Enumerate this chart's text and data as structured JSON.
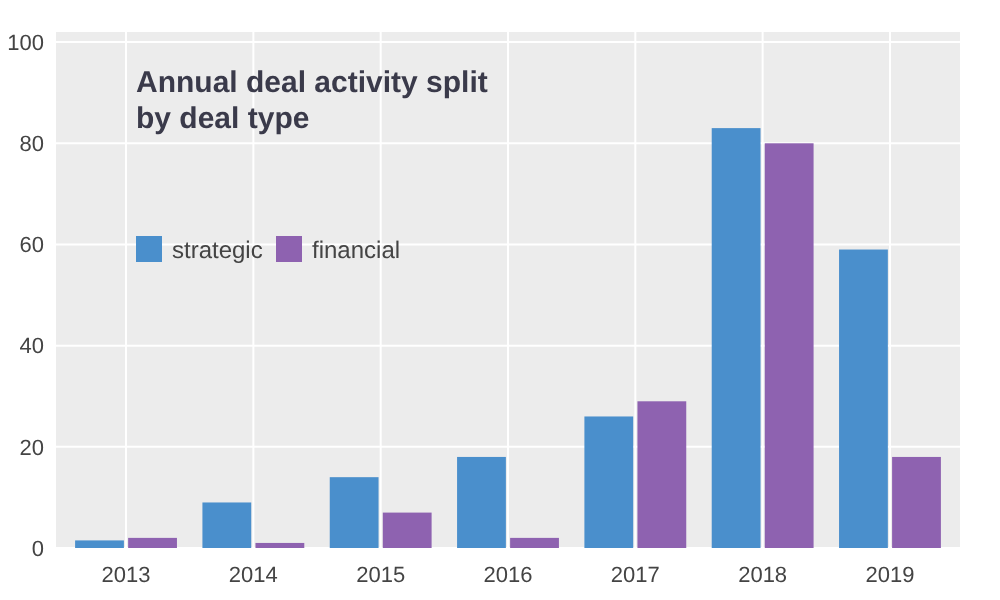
{
  "chart_data": {
    "type": "bar",
    "title": "Annual deal activity split by deal type",
    "categories": [
      "2013",
      "2014",
      "2015",
      "2016",
      "2017",
      "2018",
      "2019"
    ],
    "series": [
      {
        "name": "strategic",
        "color": "#4a8fcc",
        "values": [
          1.5,
          9,
          14,
          18,
          26,
          83,
          59
        ]
      },
      {
        "name": "financial",
        "color": "#8e62b0",
        "values": [
          2,
          1,
          7,
          2,
          29,
          80,
          18
        ]
      }
    ],
    "ylim": [
      0,
      102
    ],
    "yticks": [
      0,
      20,
      40,
      60,
      80,
      100
    ],
    "grid": true,
    "legend": "top left"
  }
}
